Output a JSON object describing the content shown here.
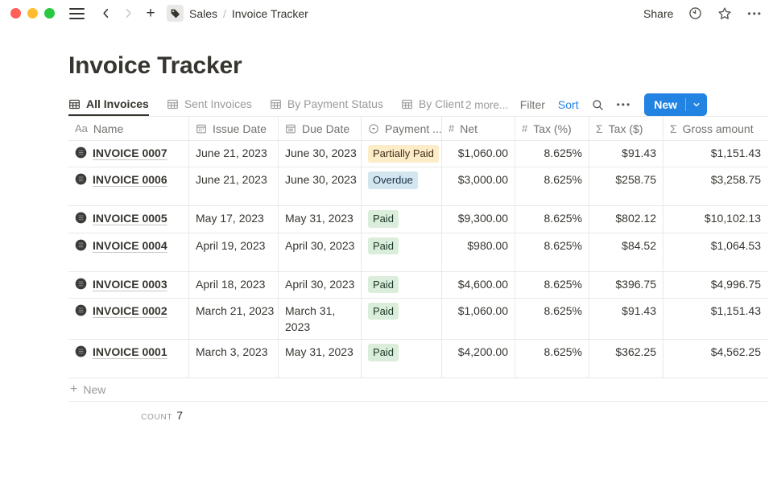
{
  "topbar": {
    "breadcrumb": {
      "section": "Sales",
      "separator": "/",
      "page": "Invoice Tracker"
    },
    "share_label": "Share"
  },
  "page_title": "Invoice Tracker",
  "view_tabs": {
    "tabs": [
      {
        "label": "All Invoices",
        "active": true
      },
      {
        "label": "Sent Invoices",
        "active": false
      },
      {
        "label": "By Payment Status",
        "active": false
      },
      {
        "label": "By Client",
        "active": false
      }
    ],
    "more_label": "2 more..."
  },
  "toolbar": {
    "filter_label": "Filter",
    "sort_label": "Sort",
    "new_label": "New"
  },
  "colors": {
    "accent_blue": "#2383e2",
    "badge_yellow_bg": "#fdecc8",
    "badge_yellow_text": "#402c1b",
    "badge_blue_bg": "#d3e5ef",
    "badge_blue_text": "#183347",
    "badge_green_bg": "#dbeddb",
    "badge_green_text": "#1c3829"
  },
  "table": {
    "columns": [
      {
        "key": "name",
        "label": "Name",
        "icon": "text-icon"
      },
      {
        "key": "issue_date",
        "label": "Issue Date",
        "icon": "calendar-icon"
      },
      {
        "key": "due_date",
        "label": "Due Date",
        "icon": "calendar-lines-icon"
      },
      {
        "key": "status",
        "label": "Payment ...",
        "icon": "select-icon"
      },
      {
        "key": "net",
        "label": "Net",
        "icon": "number-icon",
        "align": "right"
      },
      {
        "key": "tax_pct",
        "label": "Tax (%)",
        "icon": "number-icon",
        "align": "right"
      },
      {
        "key": "tax_usd",
        "label": "Tax ($)",
        "icon": "formula-icon",
        "align": "right"
      },
      {
        "key": "gross",
        "label": "Gross amount",
        "icon": "formula-icon",
        "align": "right"
      }
    ],
    "rows": [
      {
        "name": "INVOICE 0007",
        "issue_date": "June 21, 2023",
        "due_date": "June 30, 2023",
        "status": "Partially Paid",
        "status_color": "yellow",
        "net": "$1,060.00",
        "tax_pct": "8.625%",
        "tax_usd": "$91.43",
        "gross": "$1,151.43",
        "tall": false
      },
      {
        "name": "INVOICE 0006",
        "issue_date": "June 21, 2023",
        "due_date": "June 30, 2023",
        "status": "Overdue",
        "status_color": "blue",
        "net": "$3,000.00",
        "tax_pct": "8.625%",
        "tax_usd": "$258.75",
        "gross": "$3,258.75",
        "tall": true
      },
      {
        "name": "INVOICE 0005",
        "issue_date": "May 17, 2023",
        "due_date": "May 31, 2023",
        "status": "Paid",
        "status_color": "green",
        "net": "$9,300.00",
        "tax_pct": "8.625%",
        "tax_usd": "$802.12",
        "gross": "$10,102.13",
        "tall": false
      },
      {
        "name": "INVOICE 0004",
        "issue_date": "April 19, 2023",
        "due_date": "April 30, 2023",
        "status": "Paid",
        "status_color": "green",
        "net": "$980.00",
        "tax_pct": "8.625%",
        "tax_usd": "$84.52",
        "gross": "$1,064.53",
        "tall": true
      },
      {
        "name": "INVOICE 0003",
        "issue_date": "April 18, 2023",
        "due_date": "April 30, 2023",
        "status": "Paid",
        "status_color": "green",
        "net": "$4,600.00",
        "tax_pct": "8.625%",
        "tax_usd": "$396.75",
        "gross": "$4,996.75",
        "tall": false
      },
      {
        "name": "INVOICE 0002",
        "issue_date": "March 21, 2023",
        "due_date": "March 31, 2023",
        "status": "Paid",
        "status_color": "green",
        "net": "$1,060.00",
        "tax_pct": "8.625%",
        "tax_usd": "$91.43",
        "gross": "$1,151.43",
        "tall": true
      },
      {
        "name": "INVOICE 0001",
        "issue_date": "March 3, 2023",
        "due_date": "May 31, 2023",
        "status": "Paid",
        "status_color": "green",
        "net": "$4,200.00",
        "tax_pct": "8.625%",
        "tax_usd": "$362.25",
        "gross": "$4,562.25",
        "tall": true
      }
    ],
    "footer": {
      "new_label": "New",
      "count_label": "COUNT",
      "count_value": "7"
    }
  }
}
